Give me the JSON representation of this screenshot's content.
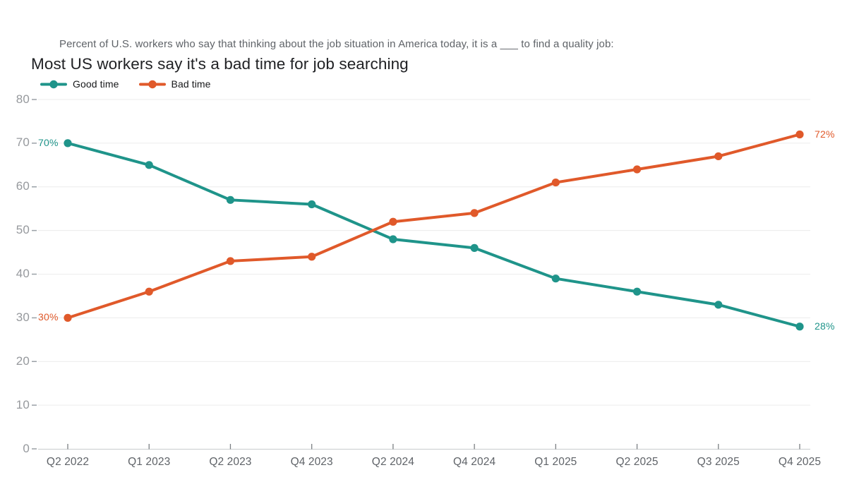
{
  "header": {
    "subtitle": "Percent of U.S. workers who say that thinking about the job situation in America today, it is a ___ to find a quality job:",
    "title": "Most US workers say it's a bad time for job searching"
  },
  "legend": [
    {
      "label": "Good time",
      "color": "#1f948a"
    },
    {
      "label": "Bad time",
      "color": "#e0592a"
    }
  ],
  "chart_data": {
    "type": "line",
    "title": "Most US workers say it's a bad time for job searching",
    "xlabel": "",
    "ylabel": "",
    "categories": [
      "Q2 2022",
      "Q1 2023",
      "Q2 2023",
      "Q4 2023",
      "Q2 2024",
      "Q4 2024",
      "Q1 2025",
      "Q2 2025",
      "Q3 2025",
      "Q4 2025"
    ],
    "series": [
      {
        "name": "Good time",
        "color": "#1f948a",
        "values": [
          70,
          65,
          57,
          56,
          48,
          46,
          39,
          36,
          33,
          28
        ],
        "point_labels": {
          "start": "70%",
          "end": "28%"
        }
      },
      {
        "name": "Bad time",
        "color": "#e0592a",
        "values": [
          30,
          36,
          43,
          44,
          52,
          54,
          61,
          64,
          67,
          72
        ],
        "point_labels": {
          "start": "30%",
          "end": "72%"
        }
      }
    ],
    "ylim": [
      0,
      80
    ],
    "ytick_step": 10,
    "yticks": [
      0,
      10,
      20,
      30,
      40,
      50,
      60,
      70,
      80
    ],
    "grid": "horizontal",
    "legend_position": "top-left"
  },
  "style_colors": {
    "gridline": "#ececec",
    "axis_line": "#c9ccce",
    "y_tick_dash": "#9aa0a6",
    "x_tick": "#7b7f83"
  }
}
